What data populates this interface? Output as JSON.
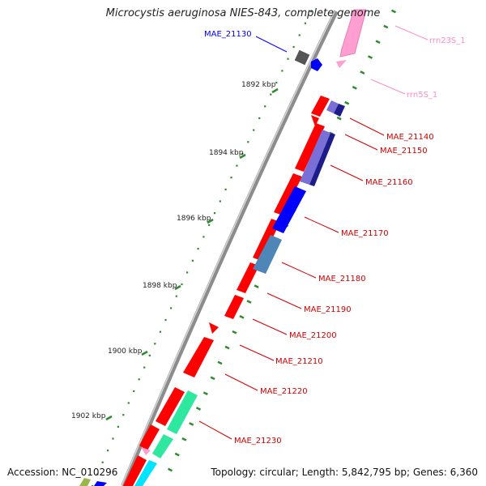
{
  "map": {
    "title": "Microcystis aeruginosa NIES-843, complete genome",
    "accession": "Accession: NC_010296",
    "topology": "Topology: circular; Length: 5,842,795 bp; Genes: 6,360",
    "colors": {
      "backbone": "#8c8c8c",
      "tick": "#2e8b2e",
      "gene_red": "#ff0000",
      "gene_blue": "#0000ff",
      "gene_navy": "#1c1c8a",
      "gene_lavender": "#7a6fd6",
      "gene_steel": "#4f86b8",
      "gene_green": "#2ee8a0",
      "gene_cyan": "#00e5ff",
      "gene_pink": "#ff9ed0",
      "gene_grey": "#555555",
      "label_blue": "#0000ff",
      "label_red": "#d40000",
      "label_pink": "#ff8ccb"
    },
    "kbp_labels": [
      "1892 kbp",
      "1894 kbp",
      "1896 kbp",
      "1898 kbp",
      "1900 kbp",
      "1902 kbp"
    ],
    "gene_labels": [
      {
        "text": "MAE_21130",
        "color": "blue"
      },
      {
        "text": "rrn23S_1",
        "color": "pink"
      },
      {
        "text": "rrn5S_1",
        "color": "pink"
      },
      {
        "text": "MAE_21140",
        "color": "red"
      },
      {
        "text": "MAE_21150",
        "color": "red"
      },
      {
        "text": "MAE_21160",
        "color": "red"
      },
      {
        "text": "MAE_21170",
        "color": "red"
      },
      {
        "text": "MAE_21180",
        "color": "red"
      },
      {
        "text": "MAE_21190",
        "color": "red"
      },
      {
        "text": "MAE_21200",
        "color": "red"
      },
      {
        "text": "MAE_21210",
        "color": "red"
      },
      {
        "text": "MAE_21220",
        "color": "red"
      },
      {
        "text": "MAE_21230",
        "color": "red"
      }
    ]
  }
}
